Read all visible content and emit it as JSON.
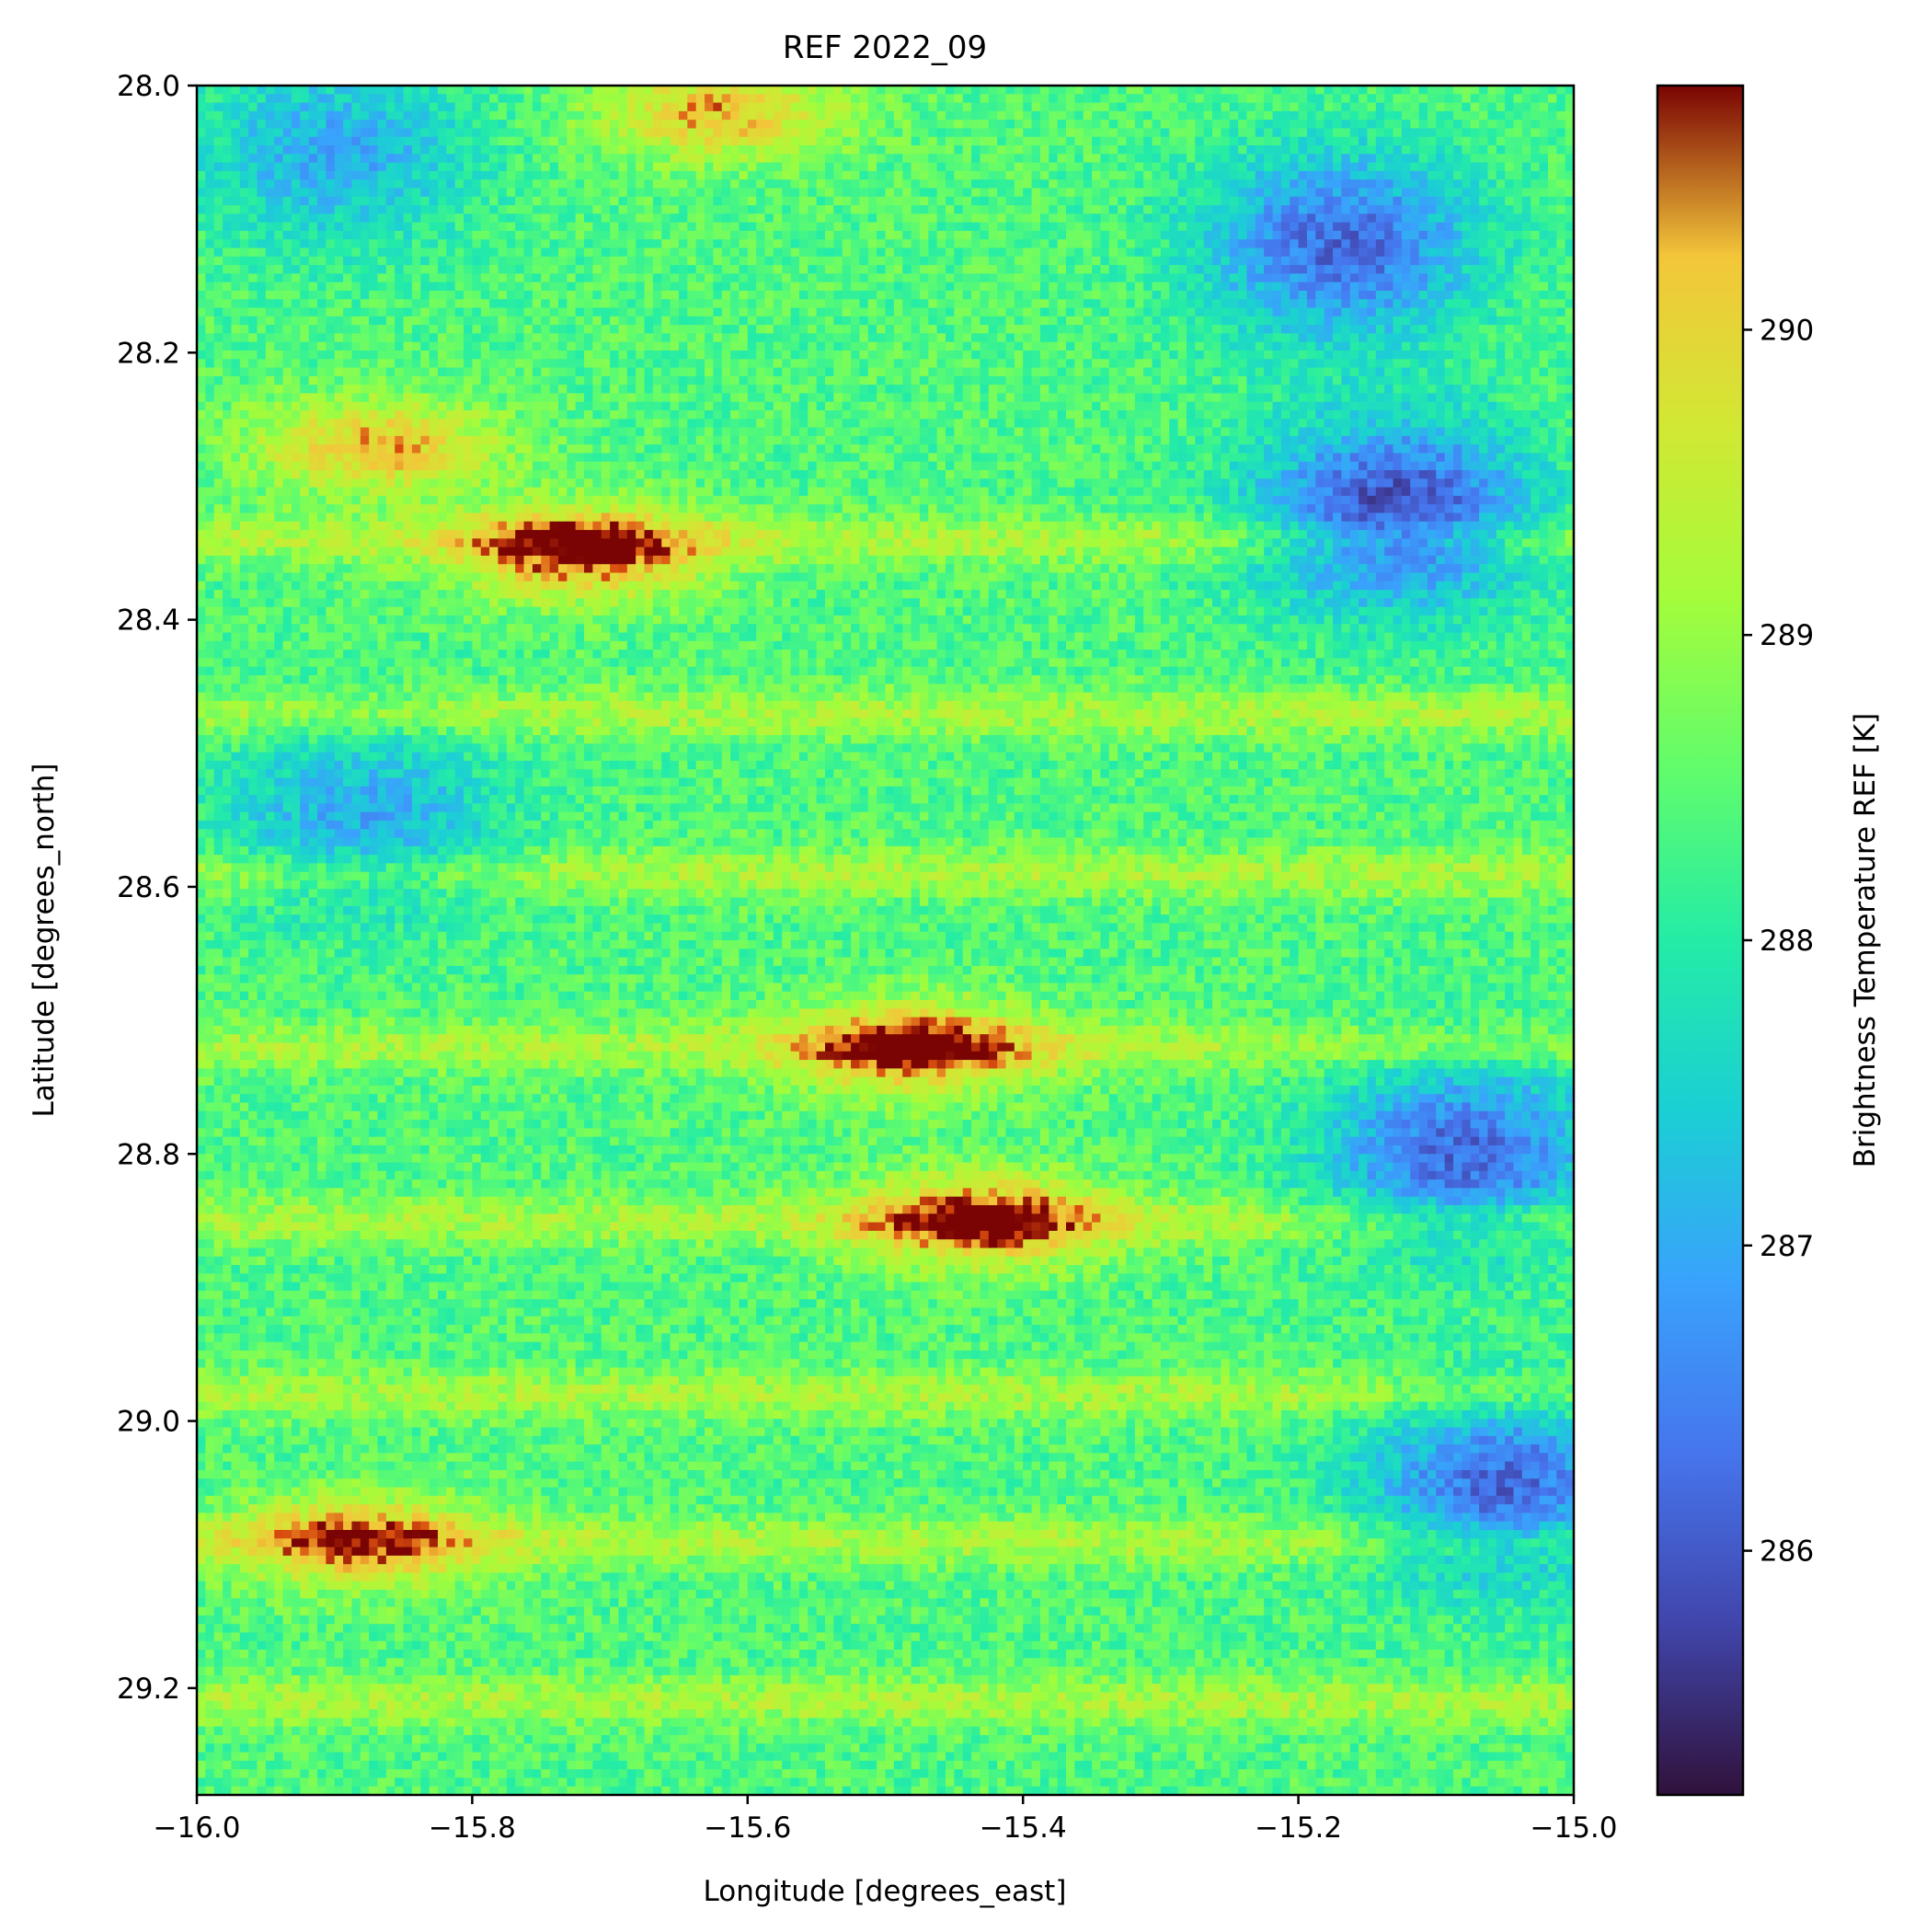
{
  "chart_data": {
    "type": "heatmap",
    "title": "REF 2022_09",
    "xlabel": "Longitude [degrees_east]",
    "ylabel": "Latitude [degrees_north]",
    "xlim": [
      -16.0,
      -15.0
    ],
    "ylim": [
      29.28,
      28.0
    ],
    "xticks": [
      -16.0,
      -15.8,
      -15.6,
      -15.4,
      -15.2,
      -15.0
    ],
    "xtick_labels": [
      "−16.0",
      "−15.8",
      "−15.6",
      "−15.4",
      "−15.2",
      "−15.0"
    ],
    "yticks": [
      28.0,
      28.2,
      28.4,
      28.6,
      28.8,
      29.0,
      29.2
    ],
    "ytick_labels": [
      "28.0",
      "28.2",
      "28.4",
      "28.6",
      "28.8",
      "29.0",
      "29.2"
    ],
    "colorbar": {
      "label": "Brightness Temperature REF [K]",
      "colormap": "turbo",
      "range": [
        285.2,
        290.8
      ],
      "ticks": [
        286,
        287,
        288,
        289,
        290
      ],
      "tick_labels": [
        "286",
        "287",
        "288",
        "289",
        "290"
      ]
    },
    "features": {
      "background_k": 288.4,
      "warm_bands_lat": [
        28.34,
        28.47,
        28.59,
        28.72,
        28.85,
        28.98,
        29.09,
        29.21
      ],
      "hot_spots": [
        {
          "lon": -15.72,
          "lat": 28.35,
          "k": 290.6
        },
        {
          "lon": -15.48,
          "lat": 28.72,
          "k": 290.6
        },
        {
          "lon": -15.43,
          "lat": 28.85,
          "k": 290.6
        },
        {
          "lon": -15.87,
          "lat": 28.27,
          "k": 290.2
        },
        {
          "lon": -15.62,
          "lat": 28.02,
          "k": 290.2
        },
        {
          "lon": -15.88,
          "lat": 29.09,
          "k": 290.2
        }
      ],
      "cold_regions": [
        {
          "lon": -15.17,
          "lat": 28.12,
          "k": 286.2
        },
        {
          "lon": -15.13,
          "lat": 28.32,
          "k": 285.8
        },
        {
          "lon": -15.08,
          "lat": 28.8,
          "k": 286.2
        },
        {
          "lon": -15.05,
          "lat": 29.05,
          "k": 286.2
        },
        {
          "lon": -15.9,
          "lat": 28.05,
          "k": 287.0
        },
        {
          "lon": -15.88,
          "lat": 28.55,
          "k": 287.0
        }
      ]
    }
  }
}
